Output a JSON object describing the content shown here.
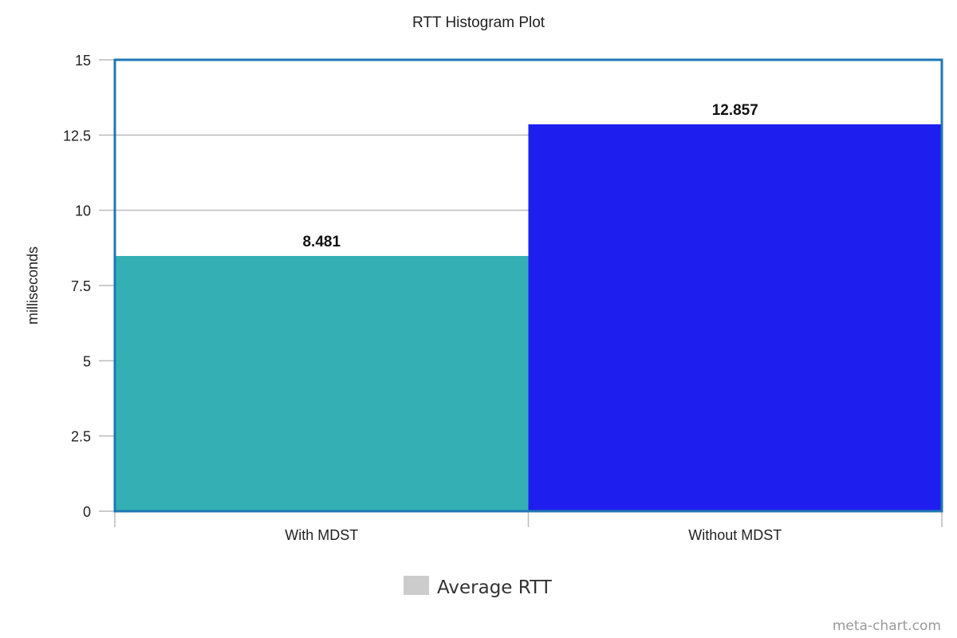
{
  "chart_data": {
    "type": "bar",
    "title": "RTT Histogram Plot",
    "xlabel": "",
    "ylabel": "milliseconds",
    "categories": [
      "With MDST",
      "Without MDST"
    ],
    "series": [
      {
        "name": "Average RTT",
        "values": [
          8.481,
          12.857
        ],
        "data_labels": [
          "8.481",
          "12.857"
        ]
      }
    ],
    "ylim": [
      0,
      15
    ],
    "yticks": [
      0,
      2.5,
      5,
      7.5,
      10,
      12.5,
      15
    ],
    "ytick_labels": [
      "0",
      "2.5",
      "5",
      "7.5",
      "10",
      "12.5",
      "15"
    ],
    "grid": true,
    "legend": "bottom-center"
  },
  "colors": {
    "bars": [
      "#34b0b4",
      "#1e1eee"
    ],
    "legend_swatch": "#cccccc",
    "plot_border": "#1f77b4",
    "grid": "#bbbbbb"
  },
  "credit": "meta-chart.com"
}
